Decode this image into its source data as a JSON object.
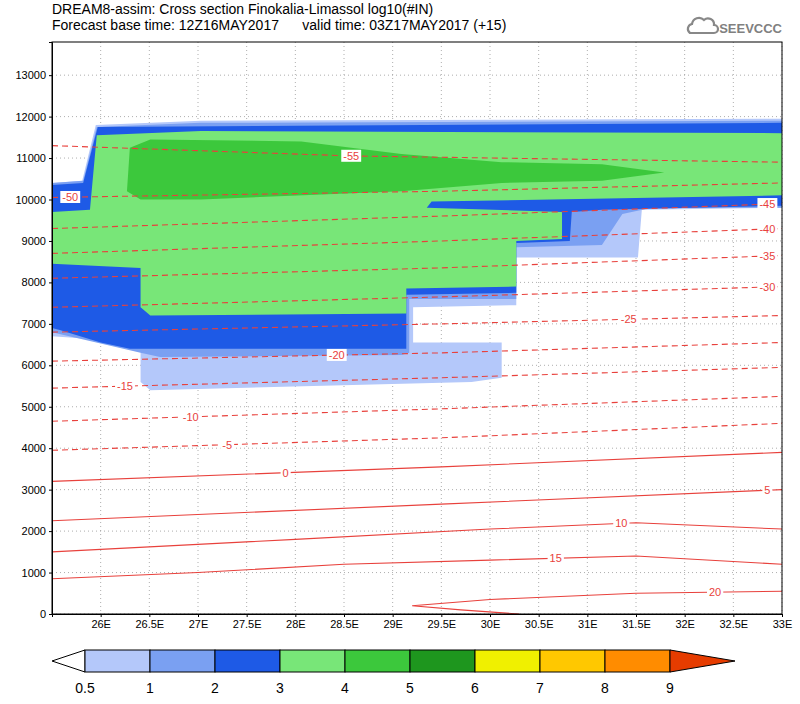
{
  "chart_data": {
    "type": "contour",
    "title": "DREAM8-assim: Cross section Finokalia-Limassol log10(#IN)",
    "subtitle": "Forecast base time: 12Z16MAY2017      valid time: 03Z17MAY2017 (+15)",
    "logo": "SEEVCCC",
    "xlim": [
      25.5,
      33
    ],
    "ylim": [
      0,
      13800
    ],
    "xticks": [
      {
        "value": 26,
        "label": "26E"
      },
      {
        "value": 26.5,
        "label": "26.5E"
      },
      {
        "value": 27,
        "label": "27E"
      },
      {
        "value": 27.5,
        "label": "27.5E"
      },
      {
        "value": 28,
        "label": "28E"
      },
      {
        "value": 28.5,
        "label": "28.5E"
      },
      {
        "value": 29,
        "label": "29E"
      },
      {
        "value": 29.5,
        "label": "29.5E"
      },
      {
        "value": 30,
        "label": "30E"
      },
      {
        "value": 30.5,
        "label": "30.5E"
      },
      {
        "value": 31,
        "label": "31E"
      },
      {
        "value": 31.5,
        "label": "31.5E"
      },
      {
        "value": 32,
        "label": "32E"
      },
      {
        "value": 32.5,
        "label": "32.5E"
      },
      {
        "value": 33,
        "label": "33E"
      }
    ],
    "yticks": [
      0,
      1000,
      2000,
      3000,
      4000,
      5000,
      6000,
      7000,
      8000,
      9000,
      10000,
      11000,
      12000,
      13000
    ],
    "grid": true,
    "color": "#e8413c",
    "filled_contours": [
      {
        "level": 0.5,
        "x": [
          25.5,
          25.81,
          25.95,
          27.03,
          33.0,
          33.0,
          31.56,
          31.52,
          30.27,
          30.27,
          29.21,
          29.21,
          30.12,
          30.12,
          29.81,
          26.51,
          26.41,
          26.41,
          25.5
        ],
        "y": [
          10400,
          10450,
          11800,
          11900,
          11950,
          9800,
          9750,
          8600,
          8600,
          7450,
          7400,
          6550,
          6550,
          5700,
          5600,
          5400,
          5600,
          6550,
          6700
        ]
      },
      {
        "level": 1,
        "x": [
          25.5,
          25.82,
          25.96,
          27.03,
          33.0,
          33.0,
          31.66,
          31.36,
          31.15,
          30.27,
          30.27,
          29.17,
          29.17,
          29.09,
          26.61,
          26.41,
          25.5
        ],
        "y": [
          10400,
          10450,
          11750,
          11850,
          11900,
          9800,
          9800,
          9650,
          8900,
          8850,
          7600,
          7600,
          6300,
          6250,
          6200,
          6300,
          6800
        ]
      },
      {
        "level": 2,
        "x": [
          25.5,
          25.82,
          25.97,
          33.0,
          33.0,
          31.15,
          30.84,
          30.82,
          30.27,
          30.27,
          29.14,
          29.14,
          26.3,
          26.0,
          25.58,
          25.5
        ],
        "y": [
          10350,
          10400,
          11750,
          11850,
          9850,
          9750,
          9700,
          9000,
          8950,
          7750,
          7700,
          6400,
          6400,
          6550,
          6850,
          6900
        ]
      },
      {
        "level": 3,
        "x": [
          25.5,
          25.89,
          25.96,
          27.03,
          33.0,
          33.0,
          29.4,
          29.35,
          30.74,
          30.74,
          30.27,
          30.27,
          29.14,
          29.14,
          26.51,
          26.41,
          26.41,
          25.5
        ],
        "y": [
          9700,
          9750,
          11550,
          11650,
          11600,
          10100,
          9950,
          9800,
          9700,
          9050,
          9000,
          7900,
          7850,
          7250,
          7200,
          7400,
          8350,
          8450
        ]
      },
      {
        "level": 4,
        "x": [
          26.27,
          26.3,
          26.51,
          28.06,
          29.09,
          30.12,
          31.15,
          31.79,
          31.15,
          30.12,
          29.09,
          27.03,
          26.41
        ],
        "y": [
          10200,
          11250,
          11450,
          11400,
          11100,
          10900,
          10850,
          10650,
          10450,
          10400,
          10200,
          10000,
          10000
        ]
      }
    ],
    "colorbar": {
      "levels": [
        0.5,
        1,
        2,
        3,
        4,
        5,
        6,
        7,
        8,
        9
      ],
      "colors": [
        "#ffffff",
        "#b4c8fa",
        "#7aa0f2",
        "#1e5ae6",
        "#78e678",
        "#3cc83c",
        "#1e961e",
        "#f0f000",
        "#ffc800",
        "#ff8c00",
        "#e63c00"
      ]
    },
    "series": [
      {
        "name": "-55",
        "line_style": "dashed",
        "x": [
          25.5,
          28.59,
          33
        ],
        "values": [
          11300,
          11050,
          10900
        ]
      },
      {
        "name": "-50",
        "line_style": "dashed",
        "x": [
          25.5,
          29.5,
          33
        ],
        "values": [
          10050,
          10200,
          10400
        ]
      },
      {
        "name": "-45",
        "line_style": "dashed",
        "x": [
          25.5,
          29.5,
          33
        ],
        "values": [
          9300,
          9600,
          9900
        ]
      },
      {
        "name": "-40",
        "line_style": "dashed",
        "x": [
          25.5,
          29.5,
          33
        ],
        "values": [
          8700,
          9000,
          9300
        ]
      },
      {
        "name": "-35",
        "line_style": "dashed",
        "x": [
          25.5,
          29.5,
          33
        ],
        "values": [
          8100,
          8350,
          8650
        ]
      },
      {
        "name": "-30",
        "line_style": "dashed",
        "x": [
          25.5,
          29.5,
          33
        ],
        "values": [
          7400,
          7650,
          7900
        ]
      },
      {
        "name": "-25",
        "line_style": "dashed",
        "x": [
          25.5,
          29.5,
          33
        ],
        "values": [
          6800,
          7000,
          7200
        ]
      },
      {
        "name": "-20",
        "line_style": "dashed",
        "x": [
          25.5,
          29.5,
          33
        ],
        "values": [
          6100,
          6300,
          6550
        ]
      },
      {
        "name": "-15",
        "line_style": "dashed",
        "x": [
          25.5,
          29.5,
          33
        ],
        "values": [
          5450,
          5700,
          5950
        ]
      },
      {
        "name": "-10",
        "line_style": "dashed",
        "x": [
          25.5,
          29.5,
          33
        ],
        "values": [
          4650,
          4950,
          5250
        ]
      },
      {
        "name": "-5",
        "line_style": "dashed",
        "x": [
          25.5,
          29.5,
          33
        ],
        "values": [
          3950,
          4250,
          4600
        ]
      },
      {
        "name": "0",
        "line_style": "solid",
        "x": [
          25.5,
          29.5,
          33
        ],
        "values": [
          3200,
          3550,
          3900
        ]
      },
      {
        "name": "5",
        "line_style": "solid",
        "x": [
          25.5,
          29.5,
          33
        ],
        "values": [
          2250,
          2650,
          3000
        ]
      },
      {
        "name": "10",
        "line_style": "solid",
        "x": [
          25.5,
          28,
          30,
          31.5,
          33
        ],
        "values": [
          1500,
          1800,
          2050,
          2200,
          2050
        ]
      },
      {
        "name": "15",
        "line_style": "solid",
        "x": [
          25.5,
          27,
          28.5,
          30,
          31.5,
          33
        ],
        "values": [
          850,
          1000,
          1200,
          1300,
          1400,
          1200
        ]
      },
      {
        "name": "20",
        "line_style": "solid",
        "x": [
          33,
          31.5,
          30,
          29.2,
          29.7,
          30.3
        ],
        "values": [
          550,
          500,
          350,
          200,
          100,
          0
        ]
      }
    ]
  }
}
